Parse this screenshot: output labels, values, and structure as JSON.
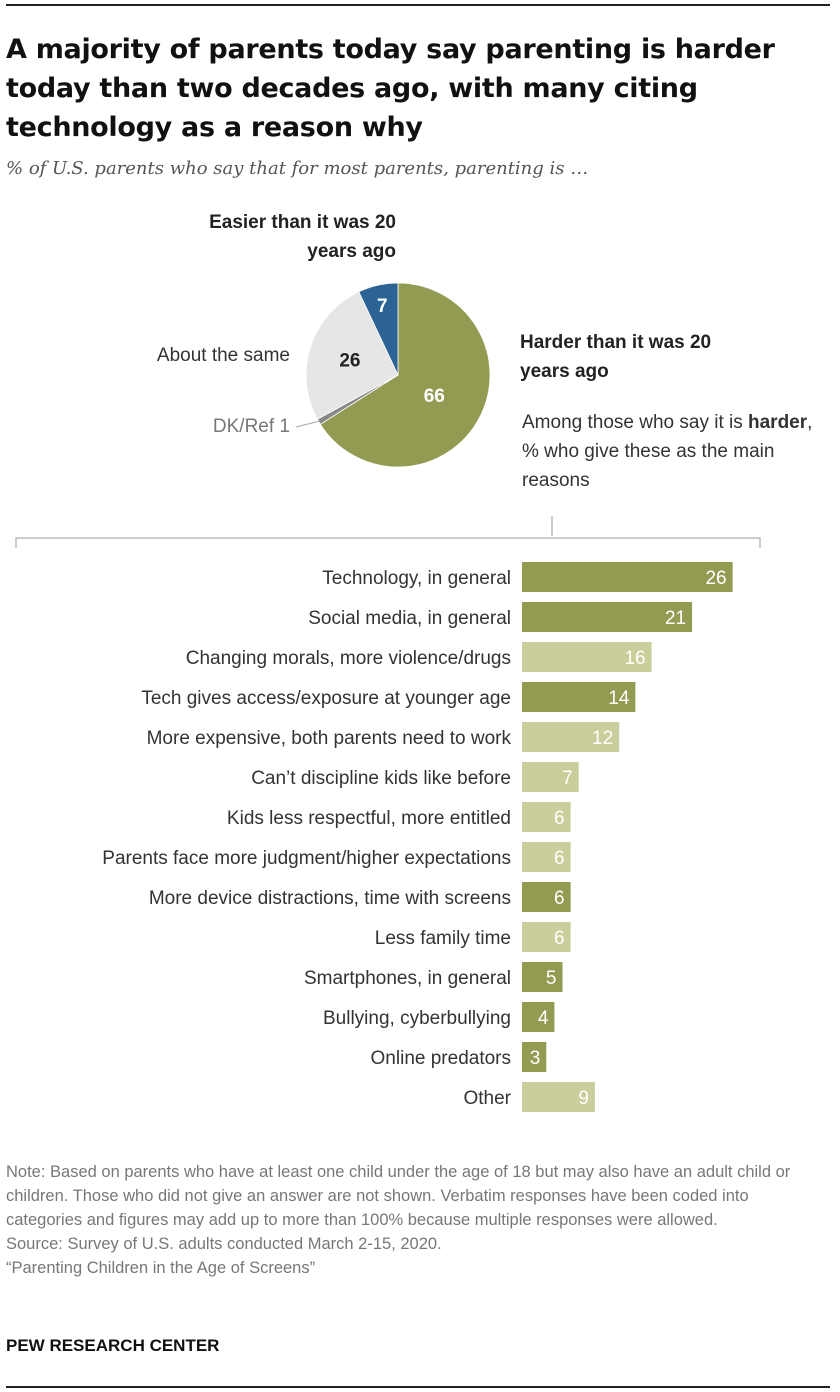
{
  "title": "A majority of parents today say parenting is harder today than two decades ago, with many citing technology as a reason why",
  "subtitle": "% of U.S. parents who say that for most parents, parenting is …",
  "pie_labels": {
    "easier": "Easier than it was 20 years ago",
    "harder": "Harder than it was 20 years ago",
    "same": "About the same",
    "dk": "DK/Ref 1"
  },
  "among_text": {
    "pre": "Among those who say it is",
    "bold": "harder",
    "post": ", % who give these as the main reasons"
  },
  "notes": [
    "Note: Based on parents who have at least one child under the age of 18 but may also have an adult child or children. Those who did not give an answer are not shown. Verbatim responses have been coded into categories and figures may add up to more than 100% because multiple responses were allowed.",
    "Source: Survey of U.S. adults conducted March 2-15, 2020.",
    "“Parenting Children in the Age of Screens”"
  ],
  "brand": "PEW RESEARCH CENTER",
  "colors": {
    "olive_dark": "#939B52",
    "olive_light": "#C9CE9A",
    "blue": "#2A6394",
    "gray_light": "#E6E6E6",
    "gray_dark": "#888888"
  },
  "chart_data": [
    {
      "type": "pie",
      "slices": [
        {
          "label": "Harder than it was 20 years ago",
          "value": 66,
          "value_label": "66",
          "color": "#939B52"
        },
        {
          "label": "DK/Ref",
          "value": 1,
          "value_label": "",
          "color": "#888888"
        },
        {
          "label": "About the same",
          "value": 26,
          "value_label": "26",
          "color": "#E6E6E6"
        },
        {
          "label": "Easier than it was 20 years ago",
          "value": 7,
          "value_label": "7",
          "color": "#2A6394"
        }
      ]
    },
    {
      "type": "bar",
      "orientation": "horizontal",
      "categories": [
        "Technology, in general",
        "Social media, in general",
        "Changing morals, more violence/drugs",
        "Tech gives access/exposure at younger age",
        "More expensive, both parents need to work",
        "Can’t discipline kids like before",
        "Kids less respectful, more entitled",
        "Parents face more judgment/higher expectations",
        "More device distractions, time with screens",
        "Less family time",
        "Smartphones, in general",
        "Bullying, cyberbullying",
        "Online predators",
        "Other"
      ],
      "values": [
        26,
        21,
        16,
        14,
        12,
        7,
        6,
        6,
        6,
        6,
        5,
        4,
        3,
        9
      ],
      "tech_related": [
        true,
        true,
        false,
        true,
        false,
        false,
        false,
        false,
        true,
        false,
        true,
        true,
        true,
        false
      ]
    }
  ]
}
